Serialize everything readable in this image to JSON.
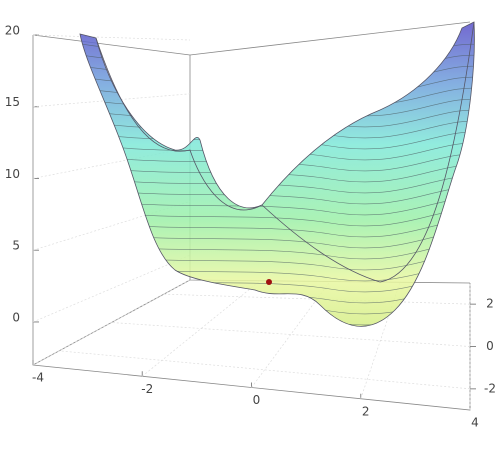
{
  "chart_data": {
    "type": "surface3d",
    "xlim": [
      -4,
      4
    ],
    "xticks": [
      -4,
      -2,
      0,
      2,
      4
    ],
    "ylim": [
      -3,
      3
    ],
    "yticks": [
      -2,
      0,
      2
    ],
    "zlim": [
      -3,
      20
    ],
    "zticks": [
      0,
      5,
      10,
      15,
      20
    ],
    "grid": true
  }
}
